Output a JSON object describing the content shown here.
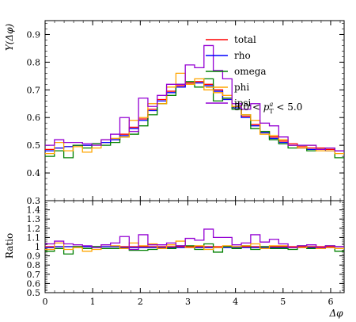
{
  "chart_data": {
    "type": "line",
    "x_edges": [
      0.0,
      0.19635,
      0.3927,
      0.58905,
      0.7854,
      0.98175,
      1.1781,
      1.37445,
      1.5708,
      1.76715,
      1.9635,
      2.15985,
      2.3562,
      2.55255,
      2.7489,
      2.94525,
      3.14159,
      3.33794,
      3.53429,
      3.73064,
      3.92699,
      4.12334,
      4.31969,
      4.51604,
      4.71239,
      4.90874,
      5.10509,
      5.30144,
      5.49779,
      5.69414,
      5.89049,
      6.08684,
      6.28319
    ],
    "xlim": [
      0,
      6.28319
    ],
    "xticks": [
      0,
      1,
      2,
      3,
      4,
      5,
      6
    ],
    "xlabel": "Δφ",
    "top_panel": {
      "ylabel": "Y(Δφ)",
      "ylim": [
        0.3,
        0.95
      ],
      "yticks": [
        "0.3",
        "0.4",
        "0.5",
        "0.6",
        "0.7",
        "0.8",
        "0.9"
      ],
      "annotation": "3.0 < p_T^a < 5.0",
      "series": [
        {
          "name": "total",
          "color": "#ff0000",
          "values": [
            0.485,
            0.49,
            0.495,
            0.5,
            0.5,
            0.505,
            0.51,
            0.52,
            0.54,
            0.565,
            0.595,
            0.63,
            0.665,
            0.695,
            0.715,
            0.725,
            0.73,
            0.72,
            0.7,
            0.67,
            0.64,
            0.605,
            0.575,
            0.55,
            0.53,
            0.515,
            0.505,
            0.495,
            0.49,
            0.49,
            0.485,
            0.48
          ]
        },
        {
          "name": "rho",
          "color": "#0000ff",
          "values": [
            0.48,
            0.49,
            0.495,
            0.5,
            0.5,
            0.505,
            0.51,
            0.52,
            0.535,
            0.56,
            0.59,
            0.625,
            0.66,
            0.69,
            0.71,
            0.72,
            0.725,
            0.715,
            0.695,
            0.665,
            0.635,
            0.6,
            0.57,
            0.545,
            0.525,
            0.51,
            0.5,
            0.49,
            0.485,
            0.485,
            0.48,
            0.48
          ]
        },
        {
          "name": "omega",
          "color": "#008000",
          "values": [
            0.46,
            0.48,
            0.455,
            0.5,
            0.49,
            0.505,
            0.5,
            0.51,
            0.53,
            0.54,
            0.57,
            0.61,
            0.65,
            0.68,
            0.72,
            0.73,
            0.71,
            0.74,
            0.66,
            0.67,
            0.63,
            0.61,
            0.56,
            0.55,
            0.52,
            0.505,
            0.49,
            0.5,
            0.48,
            0.485,
            0.49,
            0.455
          ]
        },
        {
          "name": "phi",
          "color": "#ffa500",
          "values": [
            0.47,
            0.51,
            0.48,
            0.495,
            0.475,
            0.49,
            0.52,
            0.525,
            0.53,
            0.59,
            0.6,
            0.65,
            0.65,
            0.71,
            0.76,
            0.72,
            0.74,
            0.7,
            0.69,
            0.68,
            0.64,
            0.61,
            0.59,
            0.54,
            0.535,
            0.52,
            0.5,
            0.49,
            0.5,
            0.48,
            0.48,
            0.47
          ]
        },
        {
          "name": "jpsi",
          "color": "#9400d3",
          "values": [
            0.5,
            0.52,
            0.51,
            0.51,
            0.505,
            0.5,
            0.52,
            0.54,
            0.6,
            0.55,
            0.67,
            0.64,
            0.68,
            0.72,
            0.72,
            0.79,
            0.78,
            0.86,
            0.77,
            0.74,
            0.65,
            0.63,
            0.65,
            0.58,
            0.57,
            0.53,
            0.5,
            0.5,
            0.5,
            0.485,
            0.49,
            0.48
          ]
        }
      ]
    },
    "ratio_panel": {
      "ylabel": "Ratio",
      "ylim": [
        0.5,
        1.5
      ],
      "yticks": [
        "0.5",
        "0.6",
        "0.7",
        "0.8",
        "0.9",
        "1",
        "1.1",
        "1.2",
        "1.3",
        "1.4"
      ],
      "series": [
        {
          "name": "total",
          "color": "#ff0000",
          "values": [
            1.0,
            1.0,
            1.0,
            1.0,
            1.0,
            1.0,
            1.0,
            1.0,
            1.0,
            1.0,
            1.0,
            1.0,
            1.0,
            1.0,
            1.0,
            1.0,
            1.0,
            1.0,
            1.0,
            1.0,
            1.0,
            1.0,
            1.0,
            1.0,
            1.0,
            1.0,
            1.0,
            1.0,
            1.0,
            1.0,
            1.0,
            1.0
          ]
        },
        {
          "name": "rho",
          "color": "#0000ff",
          "values": [
            0.99,
            1.0,
            1.0,
            1.0,
            1.0,
            1.0,
            1.0,
            1.0,
            0.99,
            0.99,
            0.99,
            0.99,
            0.99,
            0.99,
            0.99,
            0.99,
            0.99,
            0.99,
            0.99,
            0.99,
            0.99,
            0.99,
            0.99,
            0.99,
            0.99,
            0.99,
            0.99,
            0.99,
            0.99,
            0.99,
            0.99,
            1.0
          ]
        },
        {
          "name": "omega",
          "color": "#008000",
          "values": [
            0.95,
            0.98,
            0.92,
            1.0,
            0.98,
            1.0,
            0.98,
            0.98,
            0.98,
            0.96,
            0.96,
            0.97,
            0.98,
            0.98,
            1.01,
            1.01,
            0.97,
            1.03,
            0.94,
            1.0,
            0.98,
            1.01,
            0.97,
            1.0,
            0.98,
            0.98,
            0.97,
            1.01,
            0.98,
            0.99,
            1.01,
            0.95
          ]
        },
        {
          "name": "phi",
          "color": "#ffa500",
          "values": [
            0.97,
            1.04,
            0.97,
            0.99,
            0.95,
            0.97,
            1.02,
            1.01,
            0.98,
            1.04,
            1.01,
            1.03,
            0.98,
            1.02,
            1.06,
            0.99,
            1.01,
            0.97,
            0.99,
            1.01,
            1.0,
            1.01,
            1.03,
            0.98,
            1.01,
            1.01,
            0.99,
            0.99,
            1.02,
            0.98,
            0.99,
            0.98
          ]
        },
        {
          "name": "jpsi",
          "color": "#9400d3",
          "values": [
            1.03,
            1.06,
            1.03,
            1.02,
            1.01,
            0.99,
            1.02,
            1.04,
            1.11,
            0.97,
            1.13,
            1.02,
            1.02,
            1.04,
            1.01,
            1.09,
            1.07,
            1.19,
            1.1,
            1.1,
            1.02,
            1.04,
            1.13,
            1.05,
            1.08,
            1.03,
            0.99,
            1.01,
            1.02,
            0.99,
            1.01,
            1.0
          ]
        }
      ]
    }
  }
}
